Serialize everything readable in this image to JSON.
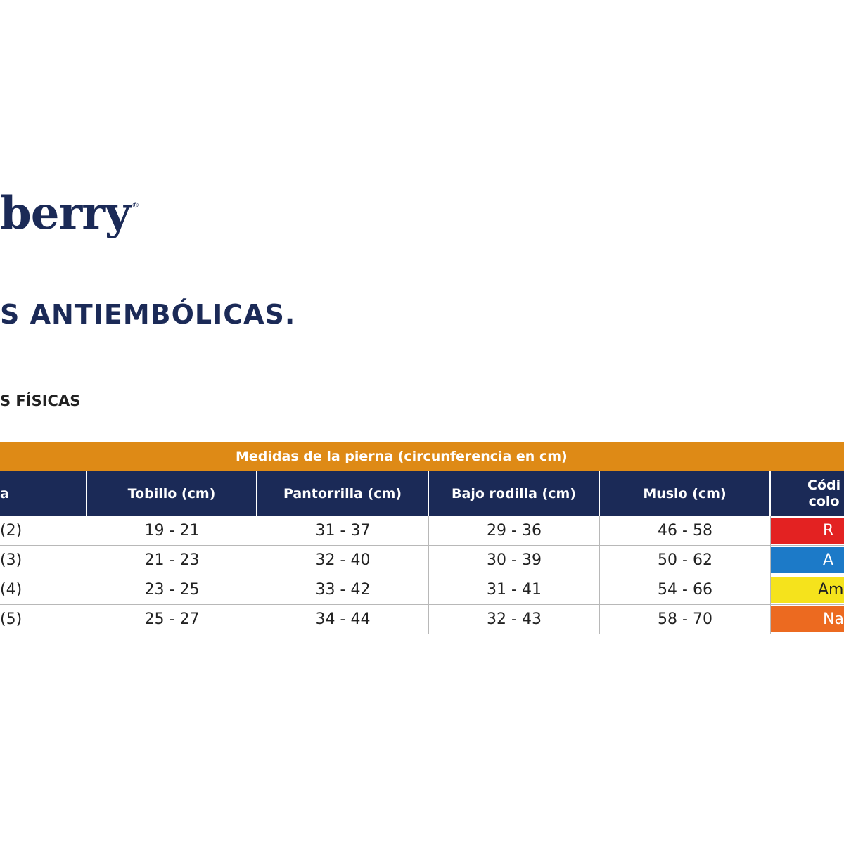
{
  "logo": {
    "text": "berry",
    "mark": "®"
  },
  "title": "S ANTIEMBÓLICAS.",
  "subtitle": "S FÍSICAS",
  "table": {
    "band_label": "Medidas de la pierna (circunferencia en cm)",
    "headers": [
      "a",
      "Tobillo (cm)",
      "Pantorrilla (cm)",
      "Bajo rodilla (cm)",
      "Muslo (cm)",
      "Códi colo"
    ],
    "header_last_line1": "Códi",
    "header_last_line2": "colo",
    "rows": [
      {
        "size": "(2)",
        "tobillo": "19 - 21",
        "pantorrilla": "31 - 37",
        "bajo_rodilla": "29 - 36",
        "muslo": "46 - 58",
        "color_label": "R",
        "color": "#e32222"
      },
      {
        "size": "(3)",
        "tobillo": "21 - 23",
        "pantorrilla": "32 - 40",
        "bajo_rodilla": "30 - 39",
        "muslo": "50 - 62",
        "color_label": "A",
        "color": "#1c7ac8"
      },
      {
        "size": "(4)",
        "tobillo": "23 - 25",
        "pantorrilla": "33 - 42",
        "bajo_rodilla": "31 - 41",
        "muslo": "54 - 66",
        "color_label": "Am",
        "color": "#f5e31c"
      },
      {
        "size": "(5)",
        "tobillo": "25 - 27",
        "pantorrilla": "34 - 44",
        "bajo_rodilla": "32 - 43",
        "muslo": "58 - 70",
        "color_label": "Na",
        "color": "#ec6a20"
      }
    ]
  },
  "colors": {
    "navy": "#1b2a57",
    "orange_band": "#de8a16"
  }
}
